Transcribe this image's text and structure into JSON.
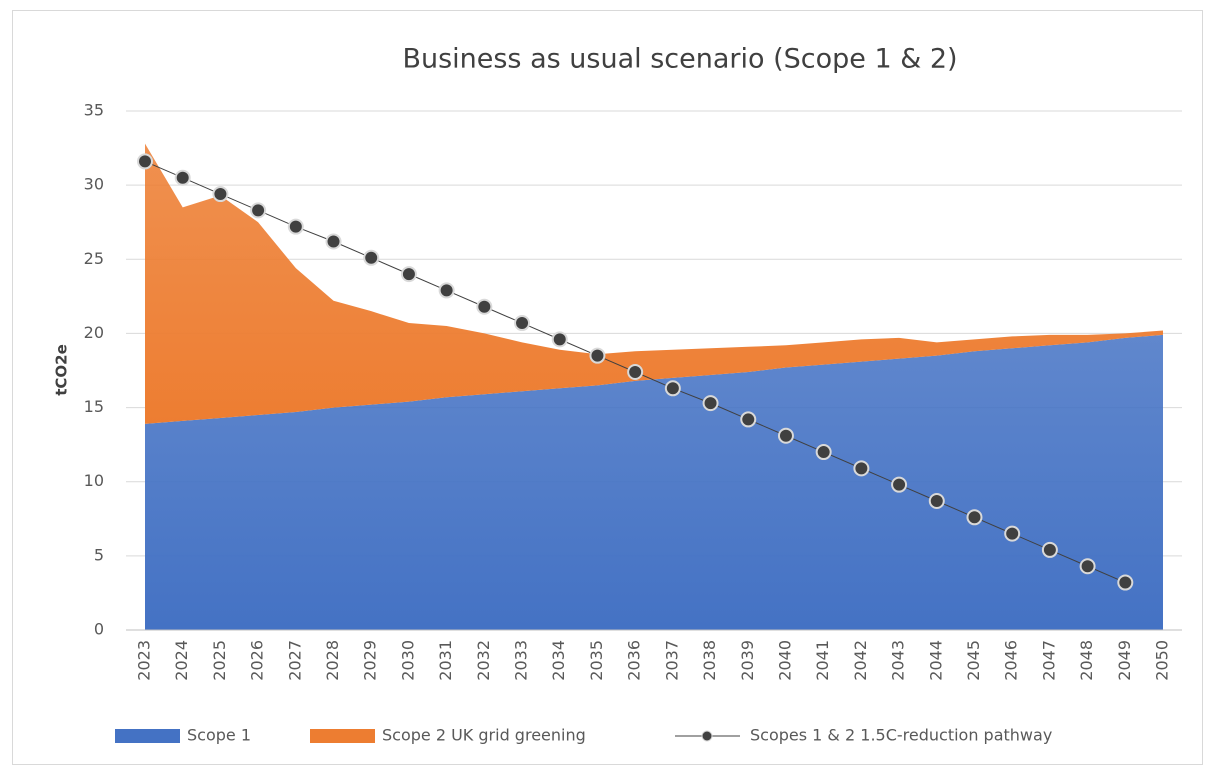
{
  "chart_data": {
    "type": "stacked_area_line",
    "title": "Business as usual scenario (Scope 1 & 2)",
    "y_label": "tCO2e",
    "categories": [
      "2023",
      "2024",
      "2025",
      "2026",
      "2027",
      "2028",
      "2029",
      "2030",
      "2031",
      "2032",
      "2033",
      "2034",
      "2035",
      "2036",
      "2037",
      "2038",
      "2039",
      "2040",
      "2041",
      "2042",
      "2043",
      "2044",
      "2045",
      "2046",
      "2047",
      "2048",
      "2049",
      "2050"
    ],
    "series": [
      {
        "name": "Scope 1",
        "kind": "area",
        "color": "#4472c4",
        "values": [
          13.9,
          14.1,
          14.3,
          14.5,
          14.7,
          15.0,
          15.2,
          15.4,
          15.7,
          15.9,
          16.1,
          16.3,
          16.5,
          16.8,
          17.0,
          17.2,
          17.4,
          17.7,
          17.9,
          18.1,
          18.3,
          18.5,
          18.8,
          19.0,
          19.2,
          19.4,
          19.7,
          19.9
        ]
      },
      {
        "name": "Scope 2 UK grid greening",
        "kind": "area",
        "color": "#ed7d31",
        "values": [
          18.9,
          14.4,
          15.0,
          13.0,
          9.7,
          7.2,
          6.3,
          5.3,
          4.8,
          4.1,
          3.3,
          2.6,
          2.1,
          2.0,
          1.9,
          1.8,
          1.7,
          1.5,
          1.5,
          1.5,
          1.4,
          0.9,
          0.8,
          0.8,
          0.7,
          0.5,
          0.3,
          0.3
        ]
      },
      {
        "name": "Scopes 1 & 2 1.5C-reduction pathway",
        "kind": "line",
        "color": "#404040",
        "values": [
          31.6,
          30.5,
          29.4,
          28.3,
          27.2,
          26.2,
          25.1,
          24.0,
          22.9,
          21.8,
          20.7,
          19.6,
          18.5,
          17.4,
          16.3,
          15.3,
          14.2,
          13.1,
          12.0,
          10.9,
          9.8,
          8.7,
          7.6,
          6.5,
          5.4,
          4.3,
          3.2,
          null
        ]
      }
    ],
    "ylim": [
      0,
      35
    ],
    "yticks": [
      0,
      5,
      10,
      15,
      20,
      25,
      30,
      35
    ],
    "grid": true,
    "legend": "bottom"
  }
}
